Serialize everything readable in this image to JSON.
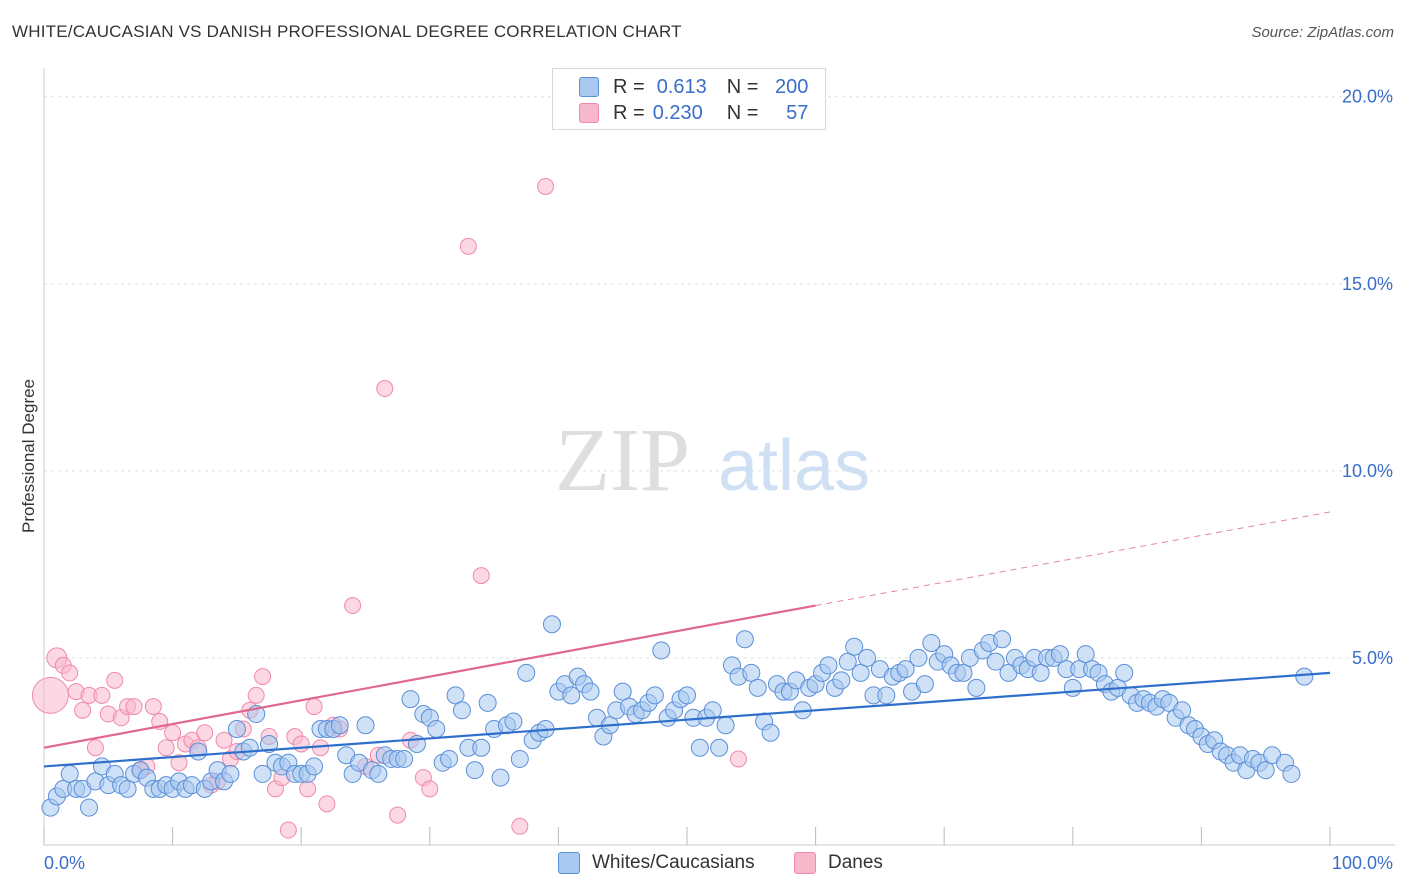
{
  "title": "WHITE/CAUCASIAN VS DANISH PROFESSIONAL DEGREE CORRELATION CHART",
  "source": "Source: ZipAtlas.com",
  "watermark": {
    "zip": "ZIP",
    "atlas": "atlas"
  },
  "legend": {
    "rows": [
      {
        "r_label": "R =",
        "r_value": "0.613",
        "n_label": "N =",
        "n_value": "200",
        "color": "#a8c8f0"
      },
      {
        "r_label": "R =",
        "r_value": "0.230",
        "n_label": "N =",
        "n_value": "57",
        "color": "#f8b8cc"
      }
    ]
  },
  "bottom_legend": [
    {
      "label": "Whites/Caucasians",
      "color": "#a8c8f0"
    },
    {
      "label": "Danes",
      "color": "#f8b8cc"
    }
  ],
  "colors": {
    "blue": "#5b8fd8",
    "blue_fill": "#a8c8f0",
    "pink": "#f08aa8",
    "pink_fill": "#f8b8cc",
    "blue_line": "#2f6fcc",
    "pink_line": "#e06890",
    "grid": "#dddddd"
  },
  "chart_data": {
    "type": "scatter",
    "title": "WHITE/CAUCASIAN VS DANISH PROFESSIONAL DEGREE CORRELATION CHART",
    "xlabel": "",
    "ylabel": "Professional Degree",
    "xlim": [
      0,
      100
    ],
    "ylim": [
      0,
      20.5
    ],
    "x_tick_labels": [
      "0.0%",
      "100.0%"
    ],
    "y_ticks": [
      5,
      10,
      15,
      20
    ],
    "y_tick_labels": [
      "5.0%",
      "10.0%",
      "15.0%",
      "20.0%"
    ],
    "grid": true,
    "series": [
      {
        "name": "Whites/Caucasians",
        "trend": {
          "x": [
            0,
            100
          ],
          "y": [
            2.1,
            4.6
          ]
        },
        "points": [
          [
            0.5,
            1.0
          ],
          [
            1,
            1.3
          ],
          [
            1.5,
            1.5
          ],
          [
            2,
            1.9
          ],
          [
            2.5,
            1.5
          ],
          [
            3,
            1.5
          ],
          [
            3.5,
            1.0
          ],
          [
            4,
            1.7
          ],
          [
            4.5,
            2.1
          ],
          [
            5,
            1.6
          ],
          [
            5.5,
            1.9
          ],
          [
            6,
            1.6
          ],
          [
            6.5,
            1.5
          ],
          [
            7,
            1.9
          ],
          [
            7.5,
            2.0
          ],
          [
            8,
            1.8
          ],
          [
            8.5,
            1.5
          ],
          [
            9,
            1.5
          ],
          [
            9.5,
            1.6
          ],
          [
            10,
            1.5
          ],
          [
            10.5,
            1.7
          ],
          [
            11,
            1.5
          ],
          [
            11.5,
            1.6
          ],
          [
            12,
            2.5
          ],
          [
            12.5,
            1.5
          ],
          [
            13,
            1.7
          ],
          [
            13.5,
            2.0
          ],
          [
            14,
            1.7
          ],
          [
            14.5,
            1.9
          ],
          [
            15,
            3.1
          ],
          [
            15.5,
            2.5
          ],
          [
            16,
            2.6
          ],
          [
            16.5,
            3.5
          ],
          [
            17,
            1.9
          ],
          [
            17.5,
            2.7
          ],
          [
            18,
            2.2
          ],
          [
            18.5,
            2.1
          ],
          [
            19,
            2.2
          ],
          [
            19.5,
            1.9
          ],
          [
            20,
            1.9
          ],
          [
            20.5,
            1.9
          ],
          [
            21,
            2.1
          ],
          [
            21.5,
            3.1
          ],
          [
            22,
            3.1
          ],
          [
            22.5,
            3.1
          ],
          [
            23,
            3.2
          ],
          [
            23.5,
            2.4
          ],
          [
            24,
            1.9
          ],
          [
            24.5,
            2.2
          ],
          [
            25,
            3.2
          ],
          [
            25.5,
            2.0
          ],
          [
            26,
            1.9
          ],
          [
            26.5,
            2.4
          ],
          [
            27,
            2.3
          ],
          [
            27.5,
            2.3
          ],
          [
            28,
            2.3
          ],
          [
            28.5,
            3.9
          ],
          [
            29,
            2.7
          ],
          [
            29.5,
            3.5
          ],
          [
            30,
            3.4
          ],
          [
            30.5,
            3.1
          ],
          [
            31,
            2.2
          ],
          [
            31.5,
            2.3
          ],
          [
            32,
            4.0
          ],
          [
            32.5,
            3.6
          ],
          [
            33,
            2.6
          ],
          [
            33.5,
            2.0
          ],
          [
            34,
            2.6
          ],
          [
            34.5,
            3.8
          ],
          [
            35,
            3.1
          ],
          [
            35.5,
            1.8
          ],
          [
            36,
            3.2
          ],
          [
            36.5,
            3.3
          ],
          [
            37,
            2.3
          ],
          [
            37.5,
            4.6
          ],
          [
            38,
            2.8
          ],
          [
            38.5,
            3.0
          ],
          [
            39,
            3.1
          ],
          [
            39.5,
            5.9
          ],
          [
            40,
            4.1
          ],
          [
            40.5,
            4.3
          ],
          [
            41,
            4.0
          ],
          [
            41.5,
            4.5
          ],
          [
            42,
            4.3
          ],
          [
            42.5,
            4.1
          ],
          [
            43,
            3.4
          ],
          [
            43.5,
            2.9
          ],
          [
            44,
            3.2
          ],
          [
            44.5,
            3.6
          ],
          [
            45,
            4.1
          ],
          [
            45.5,
            3.7
          ],
          [
            46,
            3.5
          ],
          [
            46.5,
            3.6
          ],
          [
            47,
            3.8
          ],
          [
            47.5,
            4.0
          ],
          [
            48,
            5.2
          ],
          [
            48.5,
            3.4
          ],
          [
            49,
            3.6
          ],
          [
            49.5,
            3.9
          ],
          [
            50,
            4.0
          ],
          [
            50.5,
            3.4
          ],
          [
            51,
            2.6
          ],
          [
            51.5,
            3.4
          ],
          [
            52,
            3.6
          ],
          [
            52.5,
            2.6
          ],
          [
            53,
            3.2
          ],
          [
            53.5,
            4.8
          ],
          [
            54,
            4.5
          ],
          [
            54.5,
            5.5
          ],
          [
            55,
            4.6
          ],
          [
            55.5,
            4.2
          ],
          [
            56,
            3.3
          ],
          [
            56.5,
            3.0
          ],
          [
            57,
            4.3
          ],
          [
            57.5,
            4.1
          ],
          [
            58,
            4.1
          ],
          [
            58.5,
            4.4
          ],
          [
            59,
            3.6
          ],
          [
            59.5,
            4.2
          ],
          [
            60,
            4.3
          ],
          [
            60.5,
            4.6
          ],
          [
            61,
            4.8
          ],
          [
            61.5,
            4.2
          ],
          [
            62,
            4.4
          ],
          [
            62.5,
            4.9
          ],
          [
            63,
            5.3
          ],
          [
            63.5,
            4.6
          ],
          [
            64,
            5.0
          ],
          [
            64.5,
            4.0
          ],
          [
            65,
            4.7
          ],
          [
            65.5,
            4.0
          ],
          [
            66,
            4.5
          ],
          [
            66.5,
            4.6
          ],
          [
            67,
            4.7
          ],
          [
            67.5,
            4.1
          ],
          [
            68,
            5.0
          ],
          [
            68.5,
            4.3
          ],
          [
            69,
            5.4
          ],
          [
            69.5,
            4.9
          ],
          [
            70,
            5.1
          ],
          [
            70.5,
            4.8
          ],
          [
            71,
            4.6
          ],
          [
            71.5,
            4.6
          ],
          [
            72,
            5.0
          ],
          [
            72.5,
            4.2
          ],
          [
            73,
            5.2
          ],
          [
            73.5,
            5.4
          ],
          [
            74,
            4.9
          ],
          [
            74.5,
            5.5
          ],
          [
            75,
            4.6
          ],
          [
            75.5,
            5.0
          ],
          [
            76,
            4.8
          ],
          [
            76.5,
            4.7
          ],
          [
            77,
            5.0
          ],
          [
            77.5,
            4.6
          ],
          [
            78,
            5.0
          ],
          [
            78.5,
            5.0
          ],
          [
            79,
            5.1
          ],
          [
            79.5,
            4.7
          ],
          [
            80,
            4.2
          ],
          [
            80.5,
            4.7
          ],
          [
            81,
            5.1
          ],
          [
            81.5,
            4.7
          ],
          [
            82,
            4.6
          ],
          [
            82.5,
            4.3
          ],
          [
            83,
            4.1
          ],
          [
            83.5,
            4.2
          ],
          [
            84,
            4.6
          ],
          [
            84.5,
            4.0
          ],
          [
            85,
            3.8
          ],
          [
            85.5,
            3.9
          ],
          [
            86,
            3.8
          ],
          [
            86.5,
            3.7
          ],
          [
            87,
            3.9
          ],
          [
            87.5,
            3.8
          ],
          [
            88,
            3.4
          ],
          [
            88.5,
            3.6
          ],
          [
            89,
            3.2
          ],
          [
            89.5,
            3.1
          ],
          [
            90,
            2.9
          ],
          [
            90.5,
            2.7
          ],
          [
            91,
            2.8
          ],
          [
            91.5,
            2.5
          ],
          [
            92,
            2.4
          ],
          [
            92.5,
            2.2
          ],
          [
            93,
            2.4
          ],
          [
            93.5,
            2.0
          ],
          [
            94,
            2.3
          ],
          [
            94.5,
            2.2
          ],
          [
            95,
            2.0
          ],
          [
            95.5,
            2.4
          ],
          [
            96.5,
            2.2
          ],
          [
            97,
            1.9
          ],
          [
            98,
            4.5
          ]
        ]
      },
      {
        "name": "Danes",
        "trend": {
          "x": [
            0,
            60
          ],
          "y": [
            2.6,
            6.4
          ]
        },
        "trend_dashed": {
          "x": [
            60,
            100
          ],
          "y": [
            6.4,
            8.9
          ]
        },
        "points": [
          [
            0.5,
            4.0
          ],
          [
            1,
            5.0
          ],
          [
            1.5,
            4.8
          ],
          [
            2,
            4.6
          ],
          [
            2.5,
            4.1
          ],
          [
            3,
            3.6
          ],
          [
            3.5,
            4.0
          ],
          [
            4,
            2.6
          ],
          [
            4.5,
            4.0
          ],
          [
            5,
            3.5
          ],
          [
            5.5,
            4.4
          ],
          [
            6,
            3.4
          ],
          [
            6.5,
            3.7
          ],
          [
            7,
            3.7
          ],
          [
            7.5,
            2.0
          ],
          [
            8,
            2.1
          ],
          [
            8.5,
            3.7
          ],
          [
            9,
            3.3
          ],
          [
            9.5,
            2.6
          ],
          [
            10,
            3.0
          ],
          [
            10.5,
            2.2
          ],
          [
            11,
            2.7
          ],
          [
            11.5,
            2.8
          ],
          [
            12,
            2.6
          ],
          [
            12.5,
            3.0
          ],
          [
            13,
            1.6
          ],
          [
            13.5,
            1.7
          ],
          [
            14,
            2.8
          ],
          [
            14.5,
            2.3
          ],
          [
            15,
            2.5
          ],
          [
            15.5,
            3.1
          ],
          [
            16,
            3.6
          ],
          [
            16.5,
            4.0
          ],
          [
            17,
            4.5
          ],
          [
            17.5,
            2.9
          ],
          [
            18,
            1.5
          ],
          [
            18.5,
            1.8
          ],
          [
            19,
            0.4
          ],
          [
            19.5,
            2.9
          ],
          [
            20,
            2.7
          ],
          [
            20.5,
            1.5
          ],
          [
            21,
            3.7
          ],
          [
            21.5,
            2.6
          ],
          [
            22,
            1.1
          ],
          [
            22.5,
            3.2
          ],
          [
            23,
            3.1
          ],
          [
            24,
            6.4
          ],
          [
            25,
            2.1
          ],
          [
            26,
            2.4
          ],
          [
            26.5,
            12.2
          ],
          [
            27.5,
            0.8
          ],
          [
            28.5,
            2.8
          ],
          [
            29.5,
            1.8
          ],
          [
            30,
            1.5
          ],
          [
            33,
            16.0
          ],
          [
            34,
            7.2
          ],
          [
            37,
            0.5
          ],
          [
            39,
            17.6
          ],
          [
            54,
            2.3
          ]
        ]
      }
    ]
  }
}
